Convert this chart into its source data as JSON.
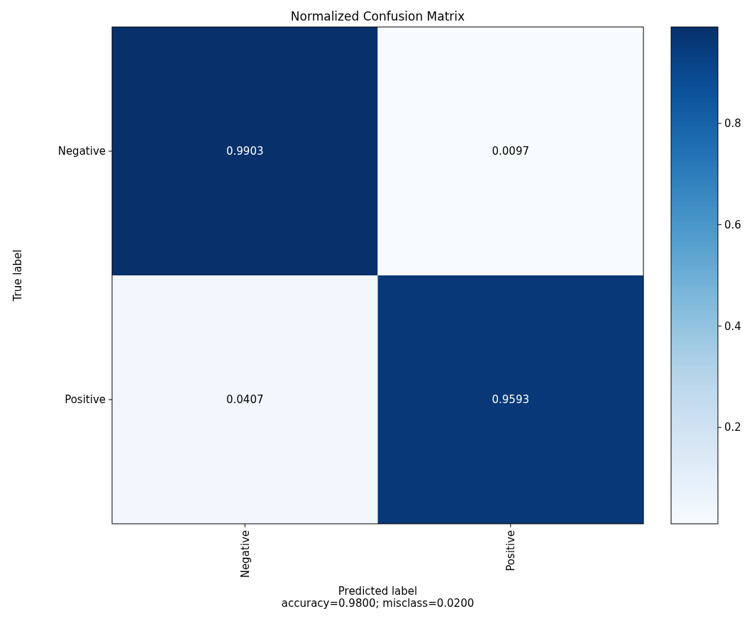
{
  "chart_data": {
    "type": "heatmap",
    "title": "Normalized Confusion Matrix",
    "xlabel": "Predicted label\naccuracy=0.9800; misclass=0.0200",
    "ylabel": "True label",
    "categories": [
      "Negative",
      "Positive"
    ],
    "y_categories": [
      "Negative",
      "Positive"
    ],
    "cells": [
      [
        0.9903,
        0.0097
      ],
      [
        0.0407,
        0.9593
      ]
    ],
    "data_labels": true,
    "clim": [
      0.0097,
      0.9903
    ],
    "cticks": [
      0.2,
      0.4,
      0.6,
      0.8
    ]
  }
}
